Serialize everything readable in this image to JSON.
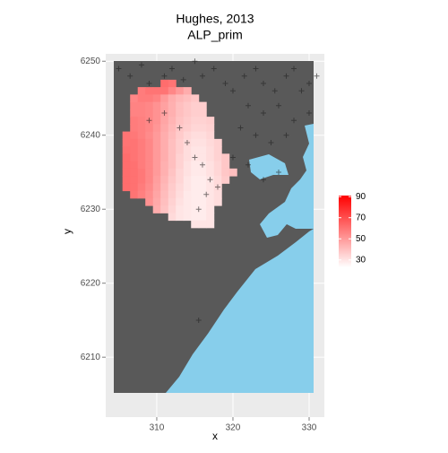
{
  "chart_data": {
    "type": "raster",
    "title": "Hughes, 2013",
    "subtitle": "ALP_prim",
    "x_label": "x",
    "y_label": "y",
    "xlim": [
      303.3,
      332
    ],
    "ylim": [
      6201.9,
      6251
    ],
    "xticks": [
      310,
      320,
      330
    ],
    "yticks": [
      6210,
      6220,
      6230,
      6240,
      6250
    ],
    "grid": true,
    "x": [
      306,
      307,
      308,
      309,
      310,
      311,
      312,
      313,
      314,
      315,
      316,
      317,
      318,
      319,
      320
    ],
    "y": [
      6247,
      6246,
      6245,
      6244,
      6243,
      6242,
      6241,
      6240,
      6239,
      6238,
      6237,
      6236,
      6235,
      6234,
      6233,
      6232,
      6231,
      6230,
      6229,
      6228
    ],
    "values": [
      [
        null,
        null,
        null,
        null,
        null,
        62,
        60,
        null,
        null,
        null,
        null,
        null,
        null,
        null,
        null
      ],
      [
        null,
        null,
        58,
        60,
        60,
        60,
        55,
        50,
        45,
        null,
        null,
        null,
        null,
        null,
        null
      ],
      [
        null,
        55,
        58,
        58,
        56,
        50,
        45,
        42,
        40,
        38,
        null,
        null,
        null,
        null,
        null
      ],
      [
        null,
        56,
        56,
        55,
        52,
        48,
        44,
        40,
        38,
        36,
        36,
        null,
        null,
        null,
        null
      ],
      [
        null,
        56,
        56,
        55,
        52,
        48,
        44,
        40,
        38,
        36,
        36,
        null,
        null,
        null,
        null
      ],
      [
        null,
        58,
        57,
        55,
        52,
        47,
        43,
        39,
        37,
        35,
        35,
        36,
        null,
        null,
        null
      ],
      [
        null,
        58,
        57,
        55,
        51,
        46,
        42,
        38,
        36,
        34,
        34,
        35,
        null,
        null,
        null
      ],
      [
        60,
        59,
        57,
        54,
        50,
        45,
        41,
        37,
        34,
        32,
        32,
        34,
        null,
        null,
        null
      ],
      [
        60,
        60,
        58,
        55,
        50,
        45,
        40,
        36,
        33,
        31,
        31,
        33,
        35,
        null,
        null
      ],
      [
        61,
        60,
        58,
        55,
        50,
        45,
        40,
        36,
        32,
        30,
        30,
        32,
        35,
        null,
        null
      ],
      [
        62,
        60,
        58,
        55,
        50,
        45,
        40,
        35,
        32,
        30,
        30,
        32,
        35,
        38,
        null
      ],
      [
        62,
        61,
        58,
        55,
        50,
        44,
        40,
        35,
        31,
        29,
        29,
        31,
        34,
        38,
        null
      ],
      [
        62,
        61,
        59,
        55,
        50,
        44,
        39,
        34,
        31,
        29,
        29,
        31,
        34,
        38,
        40
      ],
      [
        62,
        61,
        59,
        55,
        49,
        43,
        38,
        34,
        30,
        28,
        28,
        30,
        33,
        37,
        null
      ],
      [
        62,
        61,
        58,
        54,
        48,
        42,
        37,
        33,
        30,
        28,
        28,
        30,
        33,
        null,
        null
      ],
      [
        null,
        60,
        57,
        53,
        47,
        41,
        36,
        32,
        29,
        28,
        28,
        30,
        32,
        null,
        null
      ],
      [
        null,
        null,
        null,
        52,
        46,
        40,
        35,
        31,
        29,
        28,
        28,
        30,
        32,
        null,
        null
      ],
      [
        null,
        null,
        null,
        null,
        45,
        39,
        34,
        30,
        29,
        28,
        28,
        30,
        null,
        null,
        null
      ],
      [
        null,
        null,
        null,
        null,
        null,
        null,
        33,
        30,
        29,
        28,
        28,
        30,
        null,
        null,
        null
      ],
      [
        null,
        null,
        null,
        null,
        null,
        null,
        null,
        null,
        null,
        30,
        30,
        30,
        null,
        null,
        null
      ]
    ],
    "color_scale": {
      "low": "#ffffff",
      "high": "#ff0000",
      "limits": [
        23,
        91
      ],
      "ticks": [
        30,
        50,
        70,
        90
      ]
    },
    "points": {
      "color": "#222222",
      "x": [
        305,
        306.5,
        308,
        309,
        311,
        312,
        313.5,
        315,
        316,
        317.5,
        319,
        320,
        321.5,
        323,
        324,
        325.5,
        327,
        328,
        329,
        330,
        331,
        322,
        324,
        326,
        328,
        330,
        321,
        323,
        325,
        327,
        320,
        322,
        324,
        326,
        309,
        311,
        313,
        314,
        315,
        316,
        317,
        318,
        316.5,
        315.5,
        315.5
      ],
      "y": [
        6249,
        6248,
        6249.5,
        6247,
        6248,
        6249,
        6247.5,
        6250,
        6248,
        6249,
        6247,
        6246,
        6248,
        6249,
        6247,
        6246,
        6248,
        6249,
        6246,
        6247,
        6248,
        6244,
        6243,
        6244,
        6242,
        6243,
        6241,
        6240,
        6239,
        6240,
        6237,
        6236,
        6234,
        6235,
        6242,
        6243,
        6241,
        6239,
        6237,
        6236,
        6234,
        6233,
        6232,
        6230,
        6215
      ]
    }
  }
}
